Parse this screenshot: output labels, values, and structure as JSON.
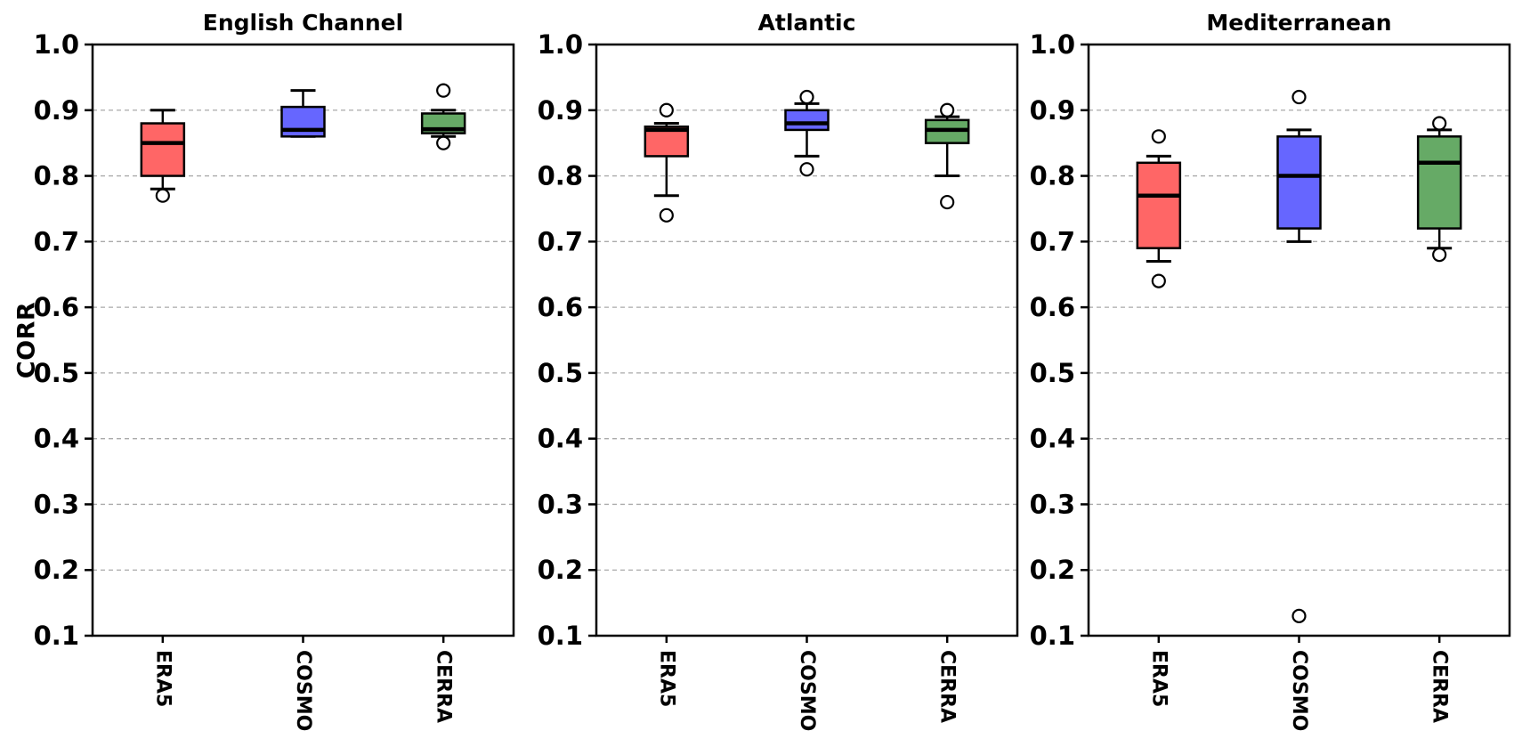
{
  "figure": {
    "ylabel": "CORR"
  },
  "style": {
    "background": "#ffffff",
    "box_edge_color": "#000000",
    "median_color": "#000000",
    "whisker_color": "#000000",
    "flier_fill": "#ffffff",
    "flier_edge": "#000000",
    "grid_color": "#aaaaaa",
    "spine_color": "#000000",
    "era5_color": "#FF6666",
    "cosmo_color": "#6666FF",
    "cerra_color": "#66AA66"
  },
  "chart_data": [
    {
      "type": "box",
      "title": "English Channel",
      "ylabel": "CORR",
      "categories": [
        "ERA5",
        "COSMO",
        "CERRA"
      ],
      "ylim": [
        0.1,
        1.0
      ],
      "yticks": [
        "1.0",
        "0.9",
        "0.8",
        "0.7",
        "0.6",
        "0.5",
        "0.4",
        "0.3",
        "0.2",
        "0.1"
      ],
      "grid": "dashed-horizontal",
      "legend": "none",
      "box_colors": [
        "#FF6666",
        "#6666FF",
        "#66AA66"
      ],
      "boxes": [
        {
          "label": "ERA5",
          "whislo": 0.78,
          "q1": 0.8,
          "med": 0.85,
          "q3": 0.88,
          "whishi": 0.9,
          "fliers": [
            0.77
          ]
        },
        {
          "label": "COSMO",
          "whislo": 0.86,
          "q1": 0.86,
          "med": 0.87,
          "q3": 0.905,
          "whishi": 0.93,
          "fliers": []
        },
        {
          "label": "CERRA",
          "whislo": 0.86,
          "q1": 0.865,
          "med": 0.871,
          "q3": 0.895,
          "whishi": 0.9,
          "fliers": [
            0.93,
            0.85
          ]
        }
      ]
    },
    {
      "type": "box",
      "title": "Atlantic",
      "ylabel": "CORR",
      "categories": [
        "ERA5",
        "COSMO",
        "CERRA"
      ],
      "ylim": [
        0.1,
        1.0
      ],
      "yticks": [
        "1.0",
        "0.9",
        "0.8",
        "0.7",
        "0.6",
        "0.5",
        "0.4",
        "0.3",
        "0.2",
        "0.1"
      ],
      "grid": "dashed-horizontal",
      "legend": "none",
      "box_colors": [
        "#FF6666",
        "#6666FF",
        "#66AA66"
      ],
      "boxes": [
        {
          "label": "ERA5",
          "whislo": 0.77,
          "q1": 0.83,
          "med": 0.87,
          "q3": 0.875,
          "whishi": 0.88,
          "fliers": [
            0.9,
            0.74
          ]
        },
        {
          "label": "COSMO",
          "whislo": 0.83,
          "q1": 0.87,
          "med": 0.88,
          "q3": 0.9,
          "whishi": 0.91,
          "fliers": [
            0.92,
            0.81
          ]
        },
        {
          "label": "CERRA",
          "whislo": 0.8,
          "q1": 0.85,
          "med": 0.87,
          "q3": 0.885,
          "whishi": 0.89,
          "fliers": [
            0.9,
            0.76
          ]
        }
      ]
    },
    {
      "type": "box",
      "title": "Mediterranean",
      "ylabel": "CORR",
      "categories": [
        "ERA5",
        "COSMO",
        "CERRA"
      ],
      "ylim": [
        0.1,
        1.0
      ],
      "yticks": [
        "1.0",
        "0.9",
        "0.8",
        "0.7",
        "0.6",
        "0.5",
        "0.4",
        "0.3",
        "0.2",
        "0.1"
      ],
      "grid": "dashed-horizontal",
      "legend": "none",
      "box_colors": [
        "#FF6666",
        "#6666FF",
        "#66AA66"
      ],
      "boxes": [
        {
          "label": "ERA5",
          "whislo": 0.67,
          "q1": 0.69,
          "med": 0.77,
          "q3": 0.82,
          "whishi": 0.83,
          "fliers": [
            0.86,
            0.64
          ]
        },
        {
          "label": "COSMO",
          "whislo": 0.7,
          "q1": 0.72,
          "med": 0.8,
          "q3": 0.86,
          "whishi": 0.87,
          "fliers": [
            0.92,
            0.13
          ]
        },
        {
          "label": "CERRA",
          "whislo": 0.69,
          "q1": 0.72,
          "med": 0.82,
          "q3": 0.86,
          "whishi": 0.87,
          "fliers": [
            0.88,
            0.68
          ]
        }
      ]
    }
  ]
}
